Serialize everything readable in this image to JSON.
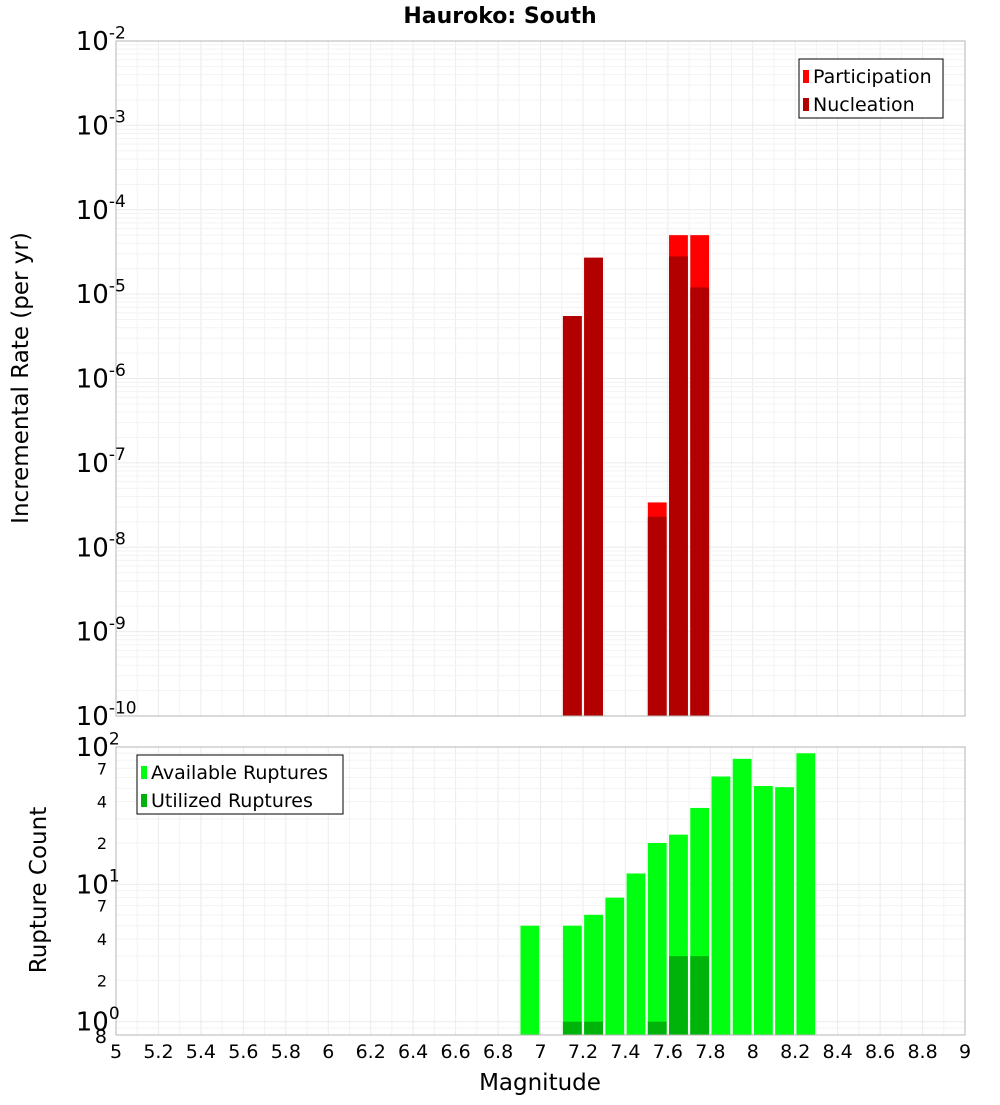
{
  "title": "Hauroko: South",
  "colors": {
    "participation": "#ff0000",
    "nucleation": "#b20000",
    "available": "#00ff11",
    "utilized": "#00b30a"
  },
  "chart_data": [
    {
      "type": "bar",
      "name": "rate-panel",
      "ylabel": "Incremental Rate (per yr)",
      "yscale": "log",
      "ylim": [
        1e-10,
        0.01
      ],
      "xlim": [
        5,
        9
      ],
      "bin_width": 0.1,
      "major_tick_labels": [
        {
          "base": "10",
          "exp": "-10"
        },
        {
          "base": "10",
          "exp": "-9"
        },
        {
          "base": "10",
          "exp": "-8"
        },
        {
          "base": "10",
          "exp": "-7"
        },
        {
          "base": "10",
          "exp": "-6"
        },
        {
          "base": "10",
          "exp": "-5"
        },
        {
          "base": "10",
          "exp": "-4"
        },
        {
          "base": "10",
          "exp": "-3"
        },
        {
          "base": "10",
          "exp": "-2"
        }
      ],
      "legend": [
        "Participation",
        "Nucleation"
      ],
      "series": [
        {
          "name": "Participation",
          "x": [
            7.15,
            7.25,
            7.55,
            7.65,
            7.75
          ],
          "values": [
            5.5e-06,
            2.7e-05,
            3.4e-08,
            5e-05,
            5e-05
          ]
        },
        {
          "name": "Nucleation",
          "x": [
            7.15,
            7.25,
            7.55,
            7.65,
            7.75
          ],
          "values": [
            5.5e-06,
            2.7e-05,
            2.3e-08,
            2.8e-05,
            1.2e-05
          ]
        }
      ]
    },
    {
      "type": "bar",
      "name": "count-panel",
      "ylabel": "Rupture Count",
      "xlabel": "Magnitude",
      "yscale": "log",
      "ylim": [
        0.8,
        100
      ],
      "xlim": [
        5,
        9
      ],
      "bin_width": 0.1,
      "major_tick_labels": [
        {
          "base": "10",
          "exp": "0"
        },
        {
          "base": "10",
          "exp": "1"
        },
        {
          "base": "10",
          "exp": "2"
        }
      ],
      "minor_tick_labels": [
        "2",
        "4",
        "7",
        "2",
        "4",
        "7"
      ],
      "bottom_label": "8",
      "x_tick_labels": [
        "5",
        "5.2",
        "5.4",
        "5.6",
        "5.8",
        "6",
        "6.2",
        "6.4",
        "6.6",
        "6.8",
        "7",
        "7.2",
        "7.4",
        "7.6",
        "7.8",
        "8",
        "8.2",
        "8.4",
        "8.6",
        "8.8",
        "9"
      ],
      "legend": [
        "Available Ruptures",
        "Utilized Ruptures"
      ],
      "series": [
        {
          "name": "Available Ruptures",
          "x": [
            6.95,
            7.15,
            7.25,
            7.35,
            7.45,
            7.55,
            7.65,
            7.75,
            7.85,
            7.95,
            8.05,
            8.15,
            8.25
          ],
          "values": [
            5,
            5,
            6,
            8,
            12,
            20,
            23,
            36,
            61,
            82,
            52,
            51,
            90
          ]
        },
        {
          "name": "Utilized Ruptures",
          "x": [
            7.15,
            7.25,
            7.55,
            7.65,
            7.75
          ],
          "values": [
            1,
            1,
            1,
            3,
            3
          ]
        }
      ]
    }
  ]
}
